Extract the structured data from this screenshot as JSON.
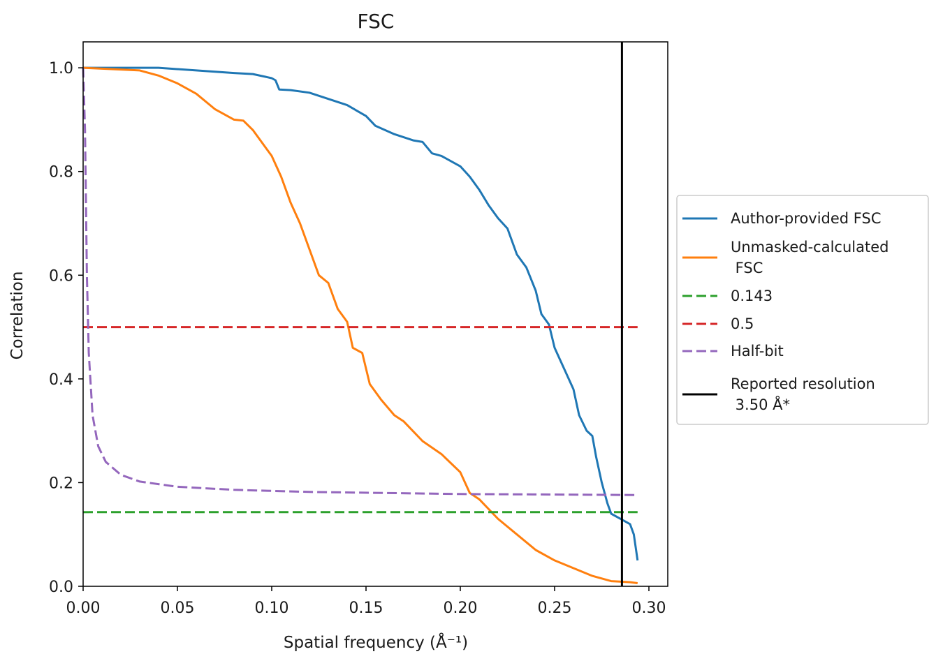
{
  "chart_data": {
    "type": "line",
    "title": "FSC",
    "xlabel": "Spatial frequency (Å⁻¹)",
    "ylabel": "Correlation",
    "xlim": [
      0.0,
      0.31
    ],
    "ylim": [
      0.0,
      1.05
    ],
    "xticks": [
      "0.00",
      "0.05",
      "0.10",
      "0.15",
      "0.20",
      "0.25",
      "0.30"
    ],
    "yticks": [
      "0.0",
      "0.2",
      "0.4",
      "0.6",
      "0.8",
      "1.0"
    ],
    "grid": false,
    "legend_position": "outside-right",
    "series": [
      {
        "name": "Author-provided FSC",
        "color": "#1f77b4",
        "style": "solid",
        "points": [
          [
            0.0,
            1.0
          ],
          [
            0.02,
            1.0
          ],
          [
            0.04,
            1.0
          ],
          [
            0.06,
            0.995
          ],
          [
            0.08,
            0.99
          ],
          [
            0.09,
            0.988
          ],
          [
            0.1,
            0.98
          ],
          [
            0.102,
            0.976
          ],
          [
            0.104,
            0.958
          ],
          [
            0.11,
            0.957
          ],
          [
            0.12,
            0.952
          ],
          [
            0.13,
            0.94
          ],
          [
            0.14,
            0.928
          ],
          [
            0.15,
            0.907
          ],
          [
            0.155,
            0.888
          ],
          [
            0.165,
            0.872
          ],
          [
            0.175,
            0.86
          ],
          [
            0.18,
            0.857
          ],
          [
            0.185,
            0.835
          ],
          [
            0.19,
            0.83
          ],
          [
            0.2,
            0.81
          ],
          [
            0.205,
            0.79
          ],
          [
            0.21,
            0.765
          ],
          [
            0.215,
            0.735
          ],
          [
            0.22,
            0.71
          ],
          [
            0.225,
            0.69
          ],
          [
            0.23,
            0.64
          ],
          [
            0.235,
            0.615
          ],
          [
            0.24,
            0.57
          ],
          [
            0.243,
            0.525
          ],
          [
            0.247,
            0.505
          ],
          [
            0.25,
            0.46
          ],
          [
            0.255,
            0.42
          ],
          [
            0.26,
            0.38
          ],
          [
            0.263,
            0.33
          ],
          [
            0.267,
            0.3
          ],
          [
            0.27,
            0.29
          ],
          [
            0.272,
            0.25
          ],
          [
            0.275,
            0.2
          ],
          [
            0.278,
            0.16
          ],
          [
            0.28,
            0.14
          ],
          [
            0.285,
            0.13
          ],
          [
            0.29,
            0.12
          ],
          [
            0.292,
            0.1
          ],
          [
            0.294,
            0.05
          ]
        ]
      },
      {
        "name": "Unmasked-calculated\n FSC",
        "color": "#ff7f0e",
        "style": "solid",
        "points": [
          [
            0.0,
            1.0
          ],
          [
            0.03,
            0.995
          ],
          [
            0.04,
            0.985
          ],
          [
            0.05,
            0.97
          ],
          [
            0.06,
            0.95
          ],
          [
            0.07,
            0.92
          ],
          [
            0.08,
            0.9
          ],
          [
            0.085,
            0.898
          ],
          [
            0.09,
            0.88
          ],
          [
            0.1,
            0.83
          ],
          [
            0.105,
            0.79
          ],
          [
            0.11,
            0.74
          ],
          [
            0.115,
            0.7
          ],
          [
            0.12,
            0.65
          ],
          [
            0.125,
            0.6
          ],
          [
            0.13,
            0.585
          ],
          [
            0.135,
            0.535
          ],
          [
            0.14,
            0.51
          ],
          [
            0.143,
            0.46
          ],
          [
            0.148,
            0.45
          ],
          [
            0.152,
            0.39
          ],
          [
            0.158,
            0.36
          ],
          [
            0.165,
            0.33
          ],
          [
            0.17,
            0.318
          ],
          [
            0.18,
            0.28
          ],
          [
            0.19,
            0.255
          ],
          [
            0.2,
            0.22
          ],
          [
            0.205,
            0.18
          ],
          [
            0.21,
            0.168
          ],
          [
            0.22,
            0.13
          ],
          [
            0.23,
            0.1
          ],
          [
            0.24,
            0.07
          ],
          [
            0.25,
            0.05
          ],
          [
            0.26,
            0.035
          ],
          [
            0.27,
            0.02
          ],
          [
            0.28,
            0.01
          ],
          [
            0.29,
            0.008
          ],
          [
            0.294,
            0.006
          ]
        ]
      },
      {
        "name": "0.143",
        "color": "#2ca02c",
        "style": "dashed",
        "points": [
          [
            0.0,
            0.143
          ],
          [
            0.294,
            0.143
          ]
        ]
      },
      {
        "name": "0.5",
        "color": "#d62728",
        "style": "dashed",
        "points": [
          [
            0.0,
            0.5
          ],
          [
            0.294,
            0.5
          ]
        ]
      },
      {
        "name": "Half-bit",
        "color": "#9467bd",
        "style": "dashed",
        "points": [
          [
            0.0,
            1.0
          ],
          [
            0.001,
            0.88
          ],
          [
            0.002,
            0.6
          ],
          [
            0.003,
            0.45
          ],
          [
            0.005,
            0.33
          ],
          [
            0.008,
            0.27
          ],
          [
            0.012,
            0.24
          ],
          [
            0.02,
            0.215
          ],
          [
            0.03,
            0.202
          ],
          [
            0.05,
            0.192
          ],
          [
            0.08,
            0.186
          ],
          [
            0.12,
            0.182
          ],
          [
            0.16,
            0.18
          ],
          [
            0.2,
            0.178
          ],
          [
            0.25,
            0.177
          ],
          [
            0.294,
            0.176
          ]
        ]
      },
      {
        "name": "Reported resolution\n 3.50 Å*",
        "color": "#000000",
        "style": "solid",
        "points": [
          [
            0.2857,
            0.0
          ],
          [
            0.2857,
            1.05
          ]
        ]
      }
    ]
  }
}
